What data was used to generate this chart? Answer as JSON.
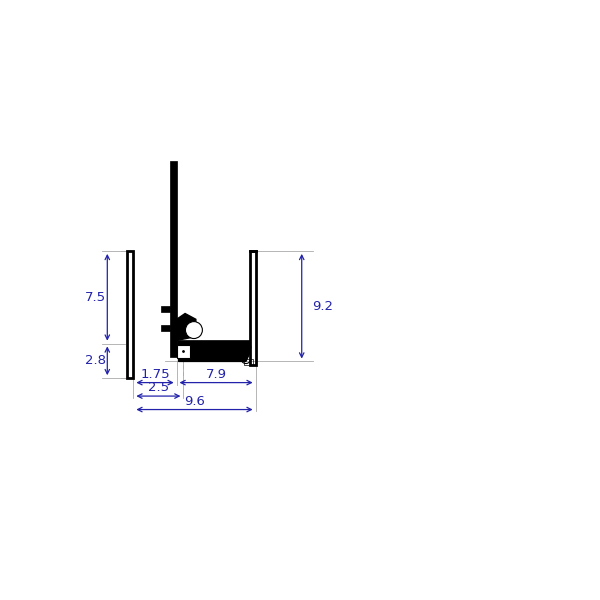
{
  "bg_color": "#ffffff",
  "line_color": "#000000",
  "dim_color": "#2222aa",
  "fig_size": [
    6.0,
    6.0
  ],
  "dpi": 100,
  "xlim": [
    0,
    12
  ],
  "ylim": [
    0,
    12
  ],
  "labels": {
    "d75": "7.5",
    "d28": "2.8",
    "d175": "1.75",
    "d25": "2.5",
    "d79": "7.9",
    "d92": "9.2",
    "d96": "9.6"
  }
}
